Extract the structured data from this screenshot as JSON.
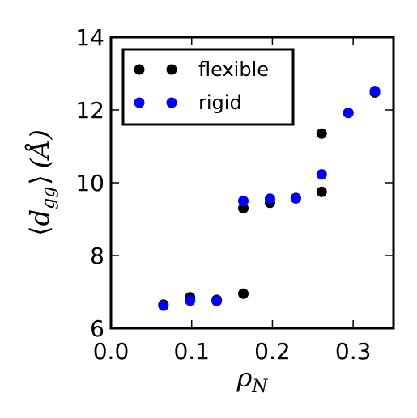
{
  "chart_data": {
    "type": "scatter",
    "title": "",
    "xlabel": {
      "main": "ρ",
      "sub": "N"
    },
    "ylabel": {
      "open": "⟨",
      "main": "d",
      "sub": "gg",
      "close": "⟩",
      "unit": "(Å)"
    },
    "xlim": [
      0.0,
      0.35
    ],
    "ylim": [
      6,
      14
    ],
    "xticks": [
      0.0,
      0.1,
      0.2,
      0.3
    ],
    "xtick_labels": [
      "0.0",
      "0.1",
      "0.2",
      "0.3"
    ],
    "yticks": [
      6,
      8,
      10,
      12,
      14
    ],
    "ytick_labels": [
      "6",
      "8",
      "10",
      "12",
      "14"
    ],
    "grid": false,
    "legend_position": "top-left",
    "series": [
      {
        "name": "flexible",
        "color": "#000000",
        "points": [
          [
            0.065,
            6.65
          ],
          [
            0.098,
            6.85
          ],
          [
            0.131,
            6.78
          ],
          [
            0.164,
            6.95
          ],
          [
            0.164,
            9.3
          ],
          [
            0.197,
            9.45
          ],
          [
            0.229,
            9.58
          ],
          [
            0.261,
            9.75
          ],
          [
            0.261,
            11.35
          ],
          [
            0.294,
            11.92
          ],
          [
            0.327,
            12.48
          ]
        ]
      },
      {
        "name": "rigid",
        "color": "#0000ff",
        "points": [
          [
            0.065,
            6.62
          ],
          [
            0.098,
            6.76
          ],
          [
            0.131,
            6.75
          ],
          [
            0.164,
            9.5
          ],
          [
            0.197,
            9.56
          ],
          [
            0.229,
            9.57
          ],
          [
            0.261,
            10.23
          ],
          [
            0.294,
            11.92
          ],
          [
            0.327,
            12.52
          ]
        ]
      }
    ]
  }
}
